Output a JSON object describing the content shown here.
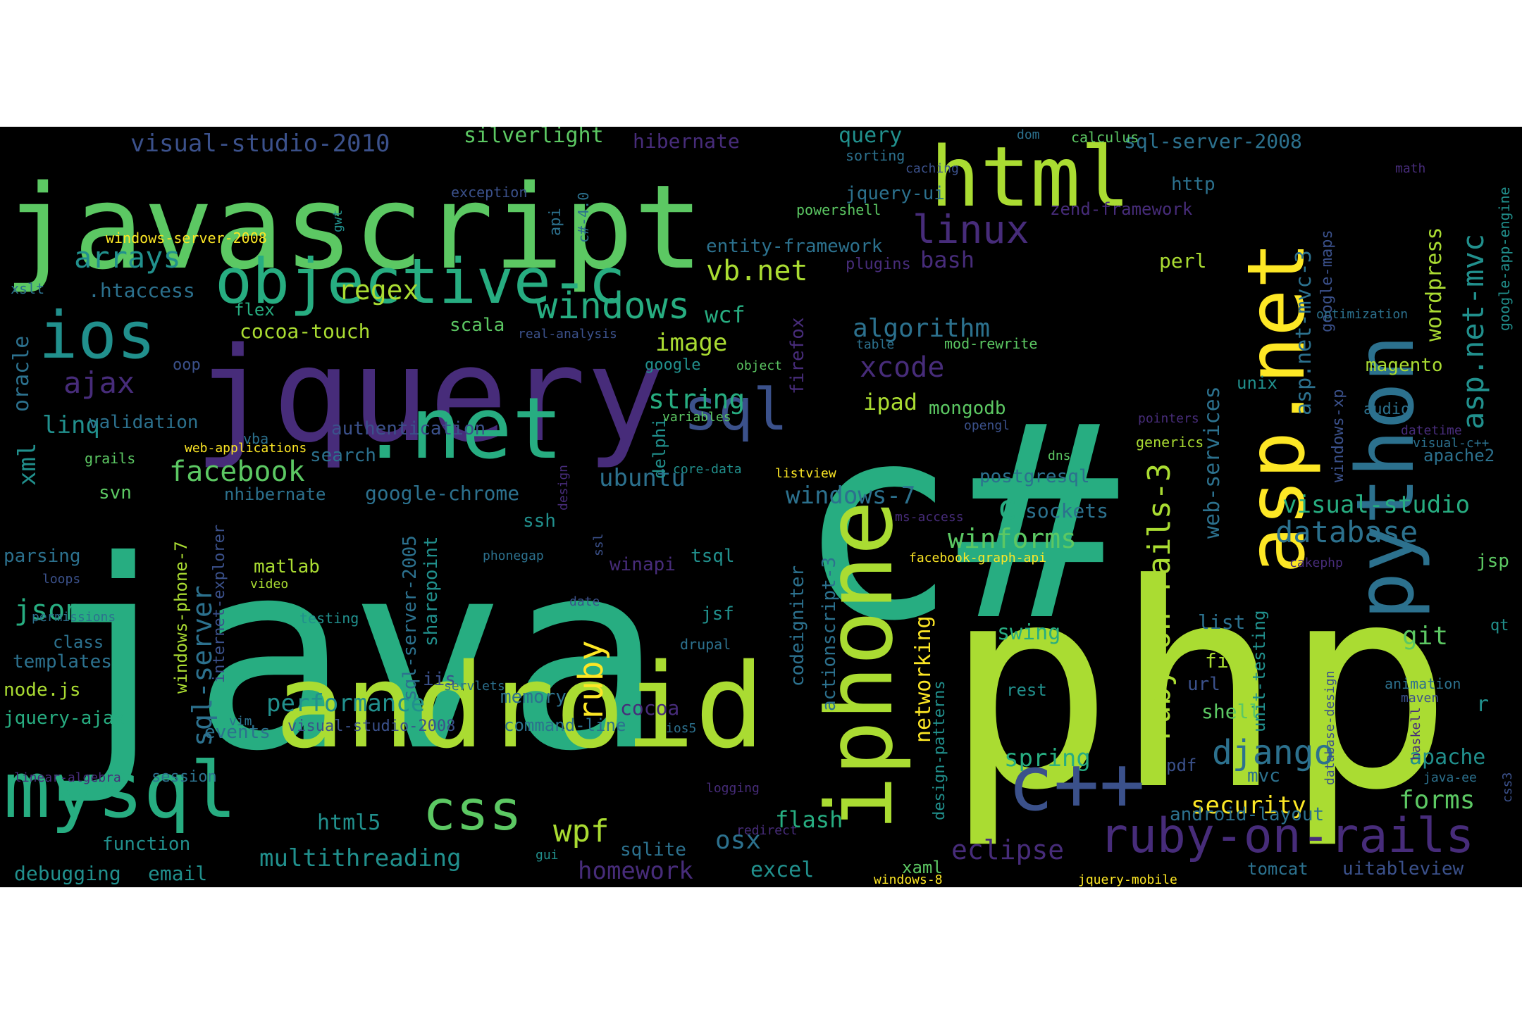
{
  "palette": [
    "#440154",
    "#472c7a",
    "#3b518b",
    "#2c718e",
    "#21908d",
    "#27ad81",
    "#5cc863",
    "#aadc32",
    "#fde725"
  ],
  "words": [
    {
      "text": "java",
      "c": 5
    },
    {
      "text": "php",
      "c": 7
    },
    {
      "text": "c#",
      "c": 5
    },
    {
      "text": "javascript",
      "c": 6
    },
    {
      "text": "jquery",
      "c": 1
    },
    {
      "text": "android",
      "c": 7
    },
    {
      "text": "iphone",
      "c": 7
    },
    {
      "text": "python",
      "c": 3
    },
    {
      "text": "asp.net",
      "c": 8
    },
    {
      "text": "html",
      "c": 7
    },
    {
      "text": "mysql",
      "c": 5
    },
    {
      "text": ".net",
      "c": 5
    },
    {
      "text": "objective-c",
      "c": 5
    },
    {
      "text": "ios",
      "c": 4
    },
    {
      "text": "sql",
      "c": 2
    },
    {
      "text": "c++",
      "c": 2
    },
    {
      "text": "css",
      "c": 6
    },
    {
      "text": "ruby-on-rails",
      "c": 1
    },
    {
      "text": "linux",
      "c": 1
    },
    {
      "text": "windows",
      "c": 5
    },
    {
      "text": "ruby-on-rails-3",
      "c": 7
    },
    {
      "text": "asp.net-mvc",
      "c": 4
    },
    {
      "text": "wordpress",
      "c": 7
    },
    {
      "text": "facebook",
      "c": 6
    },
    {
      "text": "django",
      "c": 3
    },
    {
      "text": "database",
      "c": 3
    },
    {
      "text": "arrays",
      "c": 4
    },
    {
      "text": "ajax",
      "c": 1
    },
    {
      "text": "xcode",
      "c": 1
    },
    {
      "text": "regex",
      "c": 7
    },
    {
      "text": "algorithm",
      "c": 3
    },
    {
      "text": "string",
      "c": 5
    },
    {
      "text": "image",
      "c": 7
    },
    {
      "text": "vb.net",
      "c": 7
    },
    {
      "text": "wcf",
      "c": 5
    },
    {
      "text": "wpf",
      "c": 7
    },
    {
      "text": "sql-server",
      "c": 3
    },
    {
      "text": "ruby",
      "c": 8
    },
    {
      "text": "eclipse",
      "c": 1
    },
    {
      "text": "visual-studio",
      "c": 5
    },
    {
      "text": "asp.net-mvc-3",
      "c": 3
    },
    {
      "text": "web-services",
      "c": 3
    },
    {
      "text": "winforms",
      "c": 6
    },
    {
      "text": "windows-7",
      "c": 3
    },
    {
      "text": "ubuntu",
      "c": 3
    },
    {
      "text": "performance",
      "c": 4
    },
    {
      "text": "multithreading",
      "c": 4
    },
    {
      "text": "security",
      "c": 8
    },
    {
      "text": "forms",
      "c": 6
    },
    {
      "text": "visual-studio-2010",
      "c": 2
    },
    {
      "text": "silverlight",
      "c": 6
    },
    {
      "text": "hibernate",
      "c": 1
    },
    {
      "text": "query",
      "c": 4
    },
    {
      "text": "sql-server-2008",
      "c": 3
    },
    {
      "text": "json",
      "c": 5
    },
    {
      "text": "cocoa-touch",
      "c": 7
    },
    {
      "text": "linq",
      "c": 4
    },
    {
      "text": "oracle",
      "c": 3
    },
    {
      "text": "xml",
      "c": 4
    },
    {
      "text": "git",
      "c": 6
    },
    {
      "text": "networking",
      "c": 8
    },
    {
      "text": "codeigniter",
      "c": 3
    },
    {
      "text": "actionscript-3",
      "c": 3
    },
    {
      "text": "spring",
      "c": 5
    },
    {
      "text": "swing",
      "c": 5
    },
    {
      "text": "c",
      "c": 5
    },
    {
      "text": "osx",
      "c": 3
    },
    {
      "text": "homework",
      "c": 1
    },
    {
      "text": "html5",
      "c": 4
    },
    {
      "text": "bash",
      "c": 1
    },
    {
      "text": "entity-framework",
      "c": 3
    },
    {
      "text": "jquery-ui",
      "c": 3
    },
    {
      "text": "http",
      "c": 3
    },
    {
      "text": "perl",
      "c": 7
    },
    {
      "text": "zend-framework",
      "c": 1
    },
    {
      "text": "google-maps",
      "c": 2
    },
    {
      "text": "google-app-engine",
      "c": 4
    },
    {
      "text": "magento",
      "c": 7
    },
    {
      "text": "unix",
      "c": 4
    },
    {
      "text": "windows-xp",
      "c": 2
    },
    {
      "text": "apache2",
      "c": 3
    },
    {
      "text": "apache",
      "c": 4
    },
    {
      "text": "jsp",
      "c": 6
    },
    {
      "text": "list",
      "c": 3
    },
    {
      "text": "file",
      "c": 7
    },
    {
      "text": "url",
      "c": 2
    },
    {
      "text": "shell",
      "c": 6
    },
    {
      "text": "unit-testing",
      "c": 4
    },
    {
      "text": "mvc",
      "c": 3
    },
    {
      "text": "pdf",
      "c": 2
    },
    {
      "text": "android-layout",
      "c": 3
    },
    {
      "text": "tomcat",
      "c": 3
    },
    {
      "text": "uitableview",
      "c": 2
    },
    {
      "text": "validation",
      "c": 3
    },
    {
      "text": "templates",
      "c": 3
    },
    {
      "text": "node.js",
      "c": 7
    },
    {
      "text": "jquery-ajax",
      "c": 5
    },
    {
      "text": "parsing",
      "c": 3
    },
    {
      "text": "class",
      "c": 3
    },
    {
      "text": "function",
      "c": 4
    },
    {
      "text": "debugging",
      "c": 4
    },
    {
      "text": "email",
      "c": 4
    },
    {
      "text": "session",
      "c": 3
    },
    {
      "text": "events",
      "c": 3
    },
    {
      "text": "matlab",
      "c": 7
    },
    {
      "text": "tsql",
      "c": 4
    },
    {
      "text": "jsf",
      "c": 4
    },
    {
      "text": "iis",
      "c": 2
    },
    {
      "text": "memory",
      "c": 3
    },
    {
      "text": "cocoa",
      "c": 1
    },
    {
      "text": "command-line",
      "c": 3
    },
    {
      "text": "visual-studio-2008",
      "c": 2
    },
    {
      "text": "excel",
      "c": 4
    },
    {
      "text": "sqlite",
      "c": 3
    },
    {
      "text": "flash",
      "c": 5
    },
    {
      "text": "xaml",
      "c": 6
    },
    {
      "text": "sockets",
      "c": 3
    },
    {
      "text": "postgresql",
      "c": 3
    },
    {
      "text": "mongodb",
      "c": 6
    },
    {
      "text": "ipad",
      "c": 7
    },
    {
      "text": "scala",
      "c": 6
    },
    {
      "text": "flex",
      "c": 5
    },
    {
      "text": ".htaccess",
      "c": 3
    },
    {
      "text": "authentication",
      "c": 2
    },
    {
      "text": "search",
      "c": 3
    },
    {
      "text": "svn",
      "c": 6
    },
    {
      "text": "nhibernate",
      "c": 3
    },
    {
      "text": "google-chrome",
      "c": 3
    },
    {
      "text": "ssh",
      "c": 4
    },
    {
      "text": "sharepoint",
      "c": 4
    },
    {
      "text": "sql-server-2005",
      "c": 3
    },
    {
      "text": "internet-explorer",
      "c": 2
    },
    {
      "text": "windows-phone-7",
      "c": 7
    },
    {
      "text": "delphi",
      "c": 4
    },
    {
      "text": "firefox",
      "c": 1
    },
    {
      "text": "winapi",
      "c": 1
    },
    {
      "text": "rest",
      "c": 4
    },
    {
      "text": "design-patterns",
      "c": 4
    },
    {
      "text": "real-analysis",
      "c": 2
    },
    {
      "text": "google",
      "c": 4
    },
    {
      "text": "object",
      "c": 6
    },
    {
      "text": "oop",
      "c": 2
    },
    {
      "text": "vba",
      "c": 3
    },
    {
      "text": "web-applications",
      "c": 8
    },
    {
      "text": "grails",
      "c": 6
    },
    {
      "text": "variables",
      "c": 6
    },
    {
      "text": "core-data",
      "c": 4
    },
    {
      "text": "listview",
      "c": 8
    },
    {
      "text": "design",
      "c": 1
    },
    {
      "text": "api",
      "c": 3
    },
    {
      "text": "c#-4.0",
      "c": 3
    },
    {
      "text": "exception",
      "c": 2
    },
    {
      "text": "gwt",
      "c": 4
    },
    {
      "text": "windows-server-2008",
      "c": 8
    },
    {
      "text": "xslt",
      "c": 3
    },
    {
      "text": "powershell",
      "c": 6
    },
    {
      "text": "sorting",
      "c": 3
    },
    {
      "text": "caching",
      "c": 2
    },
    {
      "text": "dom",
      "c": 3
    },
    {
      "text": "calculus",
      "c": 6
    },
    {
      "text": "table",
      "c": 3
    },
    {
      "text": "mod-rewrite",
      "c": 6
    },
    {
      "text": "opengl",
      "c": 2
    },
    {
      "text": "dns",
      "c": 6
    },
    {
      "text": "ms-access",
      "c": 1
    },
    {
      "text": "facebook-graph-api",
      "c": 8
    },
    {
      "text": "ssl",
      "c": 2
    },
    {
      "text": "plugins",
      "c": 1
    },
    {
      "text": "optimization",
      "c": 3
    },
    {
      "text": "math",
      "c": 1
    },
    {
      "text": "audio",
      "c": 3
    },
    {
      "text": "datetime",
      "c": 1
    },
    {
      "text": "visual-c++",
      "c": 3
    },
    {
      "text": "pointers",
      "c": 1
    },
    {
      "text": "generics",
      "c": 7
    },
    {
      "text": "cakephp",
      "c": 1
    },
    {
      "text": "qt",
      "c": 4
    },
    {
      "text": "r",
      "c": 4
    },
    {
      "text": "animation",
      "c": 3
    },
    {
      "text": "maven",
      "c": 2
    },
    {
      "text": "haskell",
      "c": 1
    },
    {
      "text": "java-ee",
      "c": 3
    },
    {
      "text": "css3",
      "c": 2
    },
    {
      "text": "database-design",
      "c": 2
    },
    {
      "text": "ios5",
      "c": 3
    },
    {
      "text": "logging",
      "c": 1
    },
    {
      "text": "redirect",
      "c": 1
    },
    {
      "text": "windows-8",
      "c": 8
    },
    {
      "text": "jquery-mobile",
      "c": 8
    },
    {
      "text": "gui",
      "c": 4
    },
    {
      "text": "drupal",
      "c": 3
    },
    {
      "text": "servlets",
      "c": 3
    },
    {
      "text": "vim",
      "c": 3
    },
    {
      "text": "testing",
      "c": 4
    },
    {
      "text": "video",
      "c": 7
    },
    {
      "text": "date",
      "c": 2
    },
    {
      "text": "phonegap",
      "c": 3
    },
    {
      "text": "loops",
      "c": 2
    },
    {
      "text": "permissions",
      "c": 3
    },
    {
      "text": "linear-algebra",
      "c": 1
    }
  ]
}
